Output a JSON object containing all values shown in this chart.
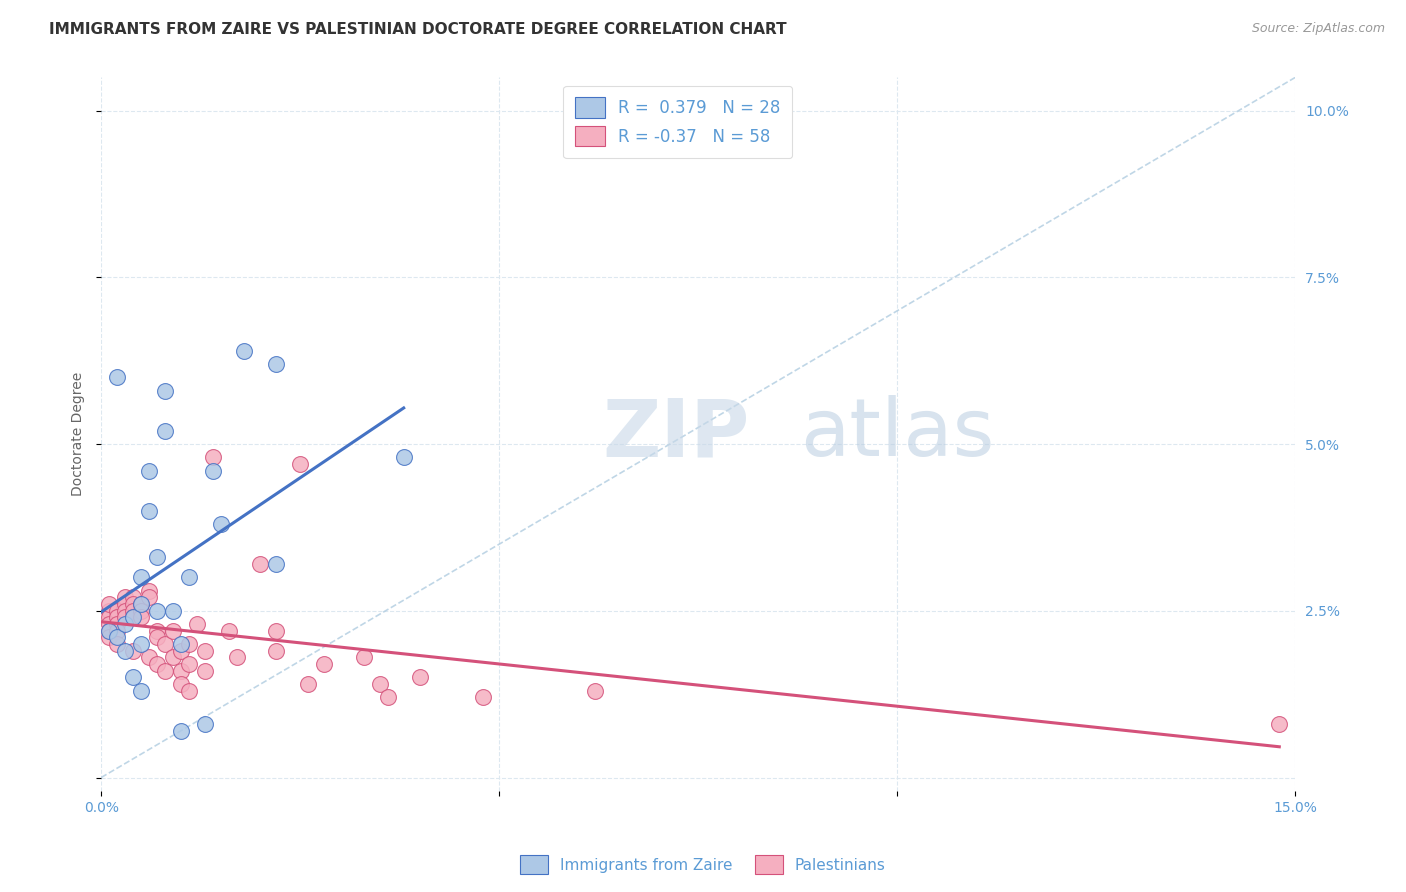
{
  "title": "IMMIGRANTS FROM ZAIRE VS PALESTINIAN DOCTORATE DEGREE CORRELATION CHART",
  "source": "Source: ZipAtlas.com",
  "ylabel": "Doctorate Degree",
  "xlim": [
    0.0,
    0.15
  ],
  "ylim": [
    -0.002,
    0.105
  ],
  "r_zaire": 0.379,
  "n_zaire": 28,
  "r_palestinians": -0.37,
  "n_palestinians": 58,
  "color_zaire": "#adc8e6",
  "color_palestinians": "#f5afc0",
  "line_color_zaire": "#4472c4",
  "line_color_palestinians": "#d4517a",
  "diagonal_color": "#b0cce0",
  "watermark_zip": "ZIP",
  "watermark_atlas": "atlas",
  "legend_labels": [
    "Immigrants from Zaire",
    "Palestinians"
  ],
  "zaire_x": [
    0.001,
    0.002,
    0.002,
    0.003,
    0.003,
    0.004,
    0.004,
    0.005,
    0.005,
    0.005,
    0.005,
    0.006,
    0.006,
    0.007,
    0.007,
    0.008,
    0.008,
    0.009,
    0.01,
    0.01,
    0.011,
    0.013,
    0.014,
    0.015,
    0.018,
    0.022,
    0.022,
    0.038
  ],
  "zaire_y": [
    0.022,
    0.021,
    0.06,
    0.019,
    0.023,
    0.024,
    0.015,
    0.02,
    0.026,
    0.03,
    0.013,
    0.04,
    0.046,
    0.025,
    0.033,
    0.052,
    0.058,
    0.025,
    0.007,
    0.02,
    0.03,
    0.008,
    0.046,
    0.038,
    0.064,
    0.062,
    0.032,
    0.048
  ],
  "pal_x": [
    0.001,
    0.001,
    0.001,
    0.001,
    0.001,
    0.001,
    0.002,
    0.002,
    0.002,
    0.002,
    0.002,
    0.003,
    0.003,
    0.003,
    0.003,
    0.004,
    0.004,
    0.004,
    0.004,
    0.004,
    0.005,
    0.005,
    0.005,
    0.006,
    0.006,
    0.006,
    0.007,
    0.007,
    0.007,
    0.008,
    0.008,
    0.009,
    0.009,
    0.01,
    0.01,
    0.01,
    0.011,
    0.011,
    0.011,
    0.012,
    0.013,
    0.013,
    0.014,
    0.016,
    0.017,
    0.02,
    0.022,
    0.022,
    0.025,
    0.026,
    0.028,
    0.033,
    0.035,
    0.036,
    0.04,
    0.048,
    0.062,
    0.148
  ],
  "pal_y": [
    0.025,
    0.024,
    0.023,
    0.022,
    0.021,
    0.026,
    0.025,
    0.024,
    0.023,
    0.022,
    0.02,
    0.027,
    0.026,
    0.025,
    0.024,
    0.027,
    0.026,
    0.025,
    0.024,
    0.019,
    0.026,
    0.025,
    0.024,
    0.028,
    0.027,
    0.018,
    0.022,
    0.021,
    0.017,
    0.02,
    0.016,
    0.022,
    0.018,
    0.019,
    0.016,
    0.014,
    0.02,
    0.017,
    0.013,
    0.023,
    0.019,
    0.016,
    0.048,
    0.022,
    0.018,
    0.032,
    0.022,
    0.019,
    0.047,
    0.014,
    0.017,
    0.018,
    0.014,
    0.012,
    0.015,
    0.012,
    0.013,
    0.008
  ],
  "background_color": "#ffffff",
  "grid_color": "#dde8f0",
  "title_fontsize": 11,
  "axis_label_fontsize": 10,
  "tick_fontsize": 10,
  "tick_color": "#5b9bd5"
}
